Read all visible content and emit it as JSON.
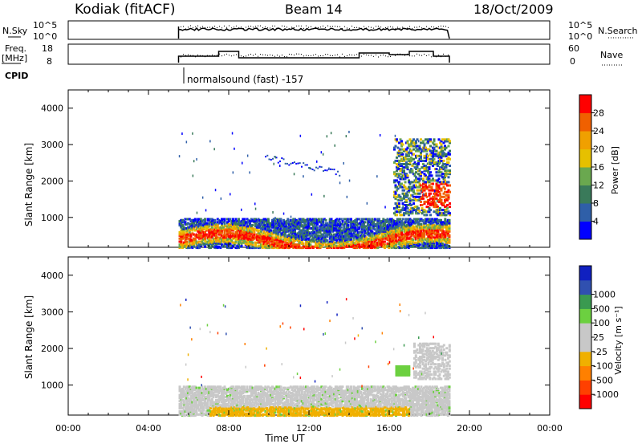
{
  "header": {
    "station": "Kodiak (fitACF)",
    "beam": "Beam 14",
    "date": "18/Oct/2009"
  },
  "panels_small": {
    "nsky_label": "N.Sky",
    "nsky_ticks": [
      "10^5",
      "10^0"
    ],
    "nsearch_label": "N.Search",
    "nsearch_ticks": [
      "10^5",
      "10^0"
    ],
    "freq_label_1": "Freq.",
    "freq_label_2": "[MHz]",
    "freq_ticks": [
      "18",
      "8"
    ],
    "nave_label": "Nave",
    "nave_ticks": [
      "60",
      "0"
    ],
    "cpid_label": "CPID",
    "cpid_text": "normalsound (fast) -157"
  },
  "colors": {
    "power": [
      "#0000ff",
      "#2f5fa8",
      "#3a7a5a",
      "#6aa84f",
      "#e6c000",
      "#f0a000",
      "#f06000",
      "#ff0000"
    ],
    "velocity": [
      "#ff0000",
      "#ff4000",
      "#ff8000",
      "#f0b000",
      "#c8c8c8",
      "#c8c8c8",
      "#6cd040",
      "#3a9a50",
      "#3050b0",
      "#1020c0"
    ]
  },
  "chart_data": [
    {
      "type": "heatmap",
      "name": "power",
      "ylabel": "Slant Range [km]",
      "yticks": [
        "1000",
        "2000",
        "3000",
        "4000"
      ],
      "ylim": [
        180,
        4500
      ],
      "xlim": [
        0,
        24
      ],
      "colorbar_label": "Power [dB]",
      "colorbar_ticks": [
        "4",
        "8",
        "12",
        "16",
        "20",
        "24",
        "28"
      ],
      "observation_window_hours": [
        5.5,
        19.0
      ]
    },
    {
      "type": "heatmap",
      "name": "velocity",
      "ylabel": "Slant Range [km]",
      "yticks": [
        "1000",
        "2000",
        "3000",
        "4000"
      ],
      "ylim": [
        180,
        4500
      ],
      "xlim": [
        0,
        24
      ],
      "colorbar_label": "Velocity [m s⁻¹]",
      "colorbar_ticks": [
        "1000",
        "500",
        "100",
        "25",
        "-25",
        "-100",
        "-500",
        "-1000"
      ],
      "observation_window_hours": [
        5.5,
        19.0
      ]
    }
  ],
  "xaxis": {
    "label": "Time UT",
    "ticks": [
      "00:00",
      "04:00",
      "08:00",
      "12:00",
      "16:00",
      "20:00",
      "00:00"
    ]
  }
}
